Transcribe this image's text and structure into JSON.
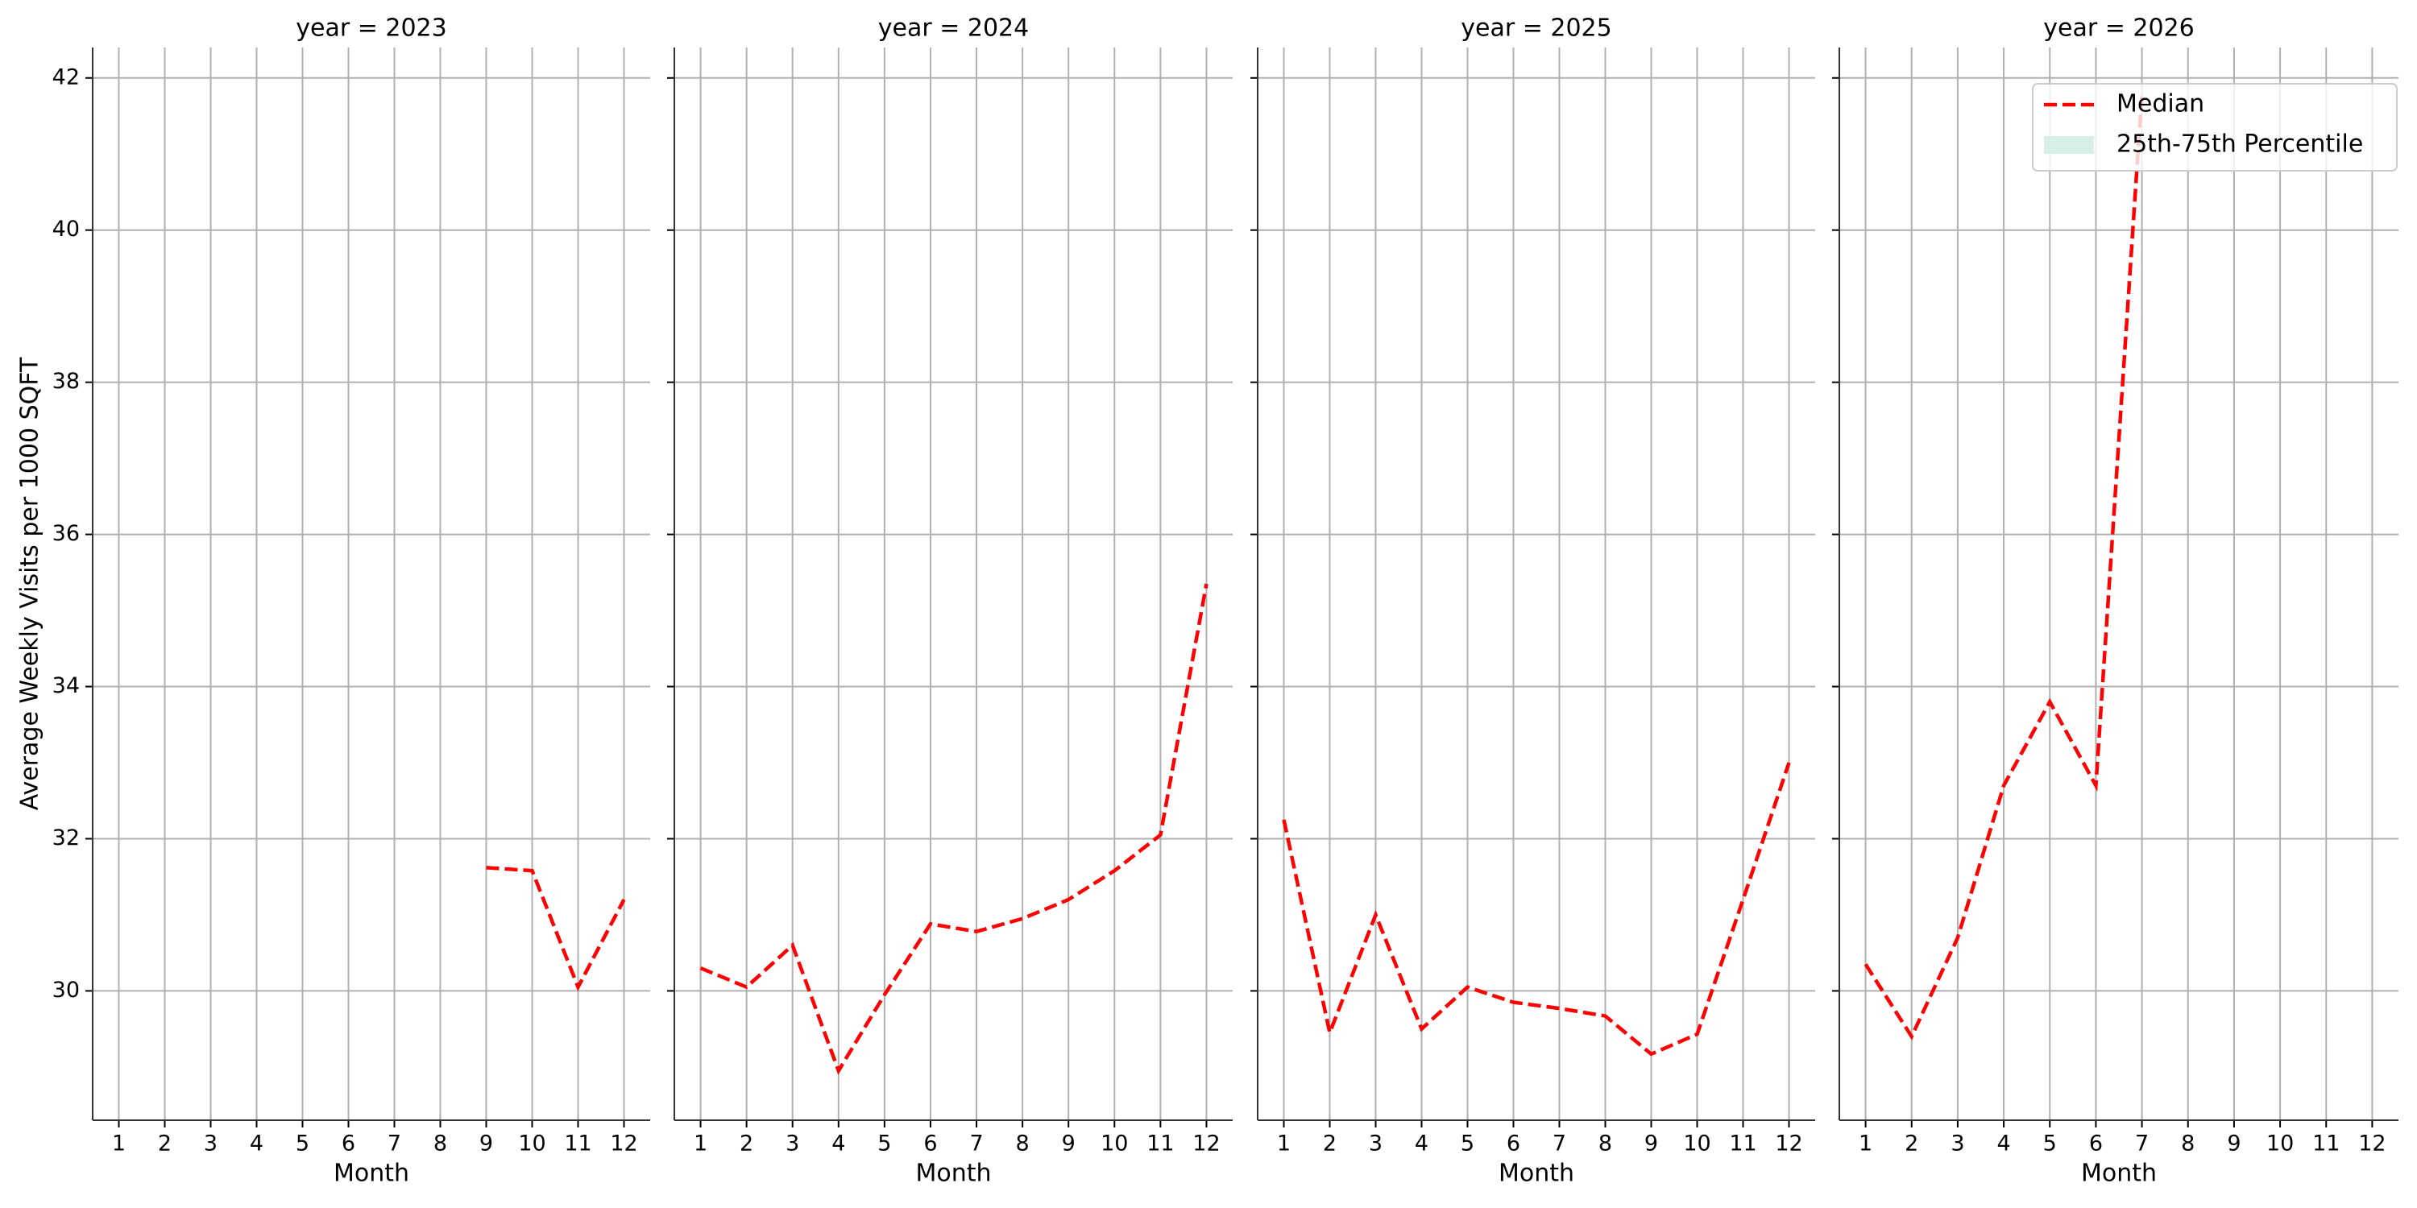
{
  "chart_data": [
    {
      "type": "line",
      "title": "year = 2023",
      "xlabel": "Month",
      "ylabel": "Average Weekly Visits per 1000 SQFT",
      "x": [
        1,
        2,
        3,
        4,
        5,
        6,
        7,
        8,
        9,
        10,
        11,
        12
      ],
      "series": [
        {
          "name": "Median",
          "color": "#ff0000",
          "style": "dashed",
          "values": [
            null,
            null,
            null,
            null,
            null,
            null,
            null,
            null,
            31.62,
            31.58,
            30.05,
            31.2
          ]
        }
      ],
      "xlim": [
        0.43,
        12.57
      ],
      "ylim": [
        28.3,
        42.4
      ],
      "xticks": [
        1,
        2,
        3,
        4,
        5,
        6,
        7,
        8,
        9,
        10,
        11,
        12
      ],
      "yticks": [
        30,
        32,
        34,
        36,
        38,
        40,
        42
      ],
      "ytick_labels": true,
      "grid": true
    },
    {
      "type": "line",
      "title": "year = 2024",
      "xlabel": "Month",
      "x": [
        1,
        2,
        3,
        4,
        5,
        6,
        7,
        8,
        9,
        10,
        11,
        12
      ],
      "series": [
        {
          "name": "Median",
          "color": "#ff0000",
          "style": "dashed",
          "values": [
            30.3,
            30.05,
            30.6,
            28.95,
            29.95,
            30.88,
            30.78,
            30.95,
            31.2,
            31.58,
            32.05,
            35.35
          ]
        }
      ],
      "xlim": [
        0.43,
        12.57
      ],
      "ylim": [
        28.3,
        42.4
      ],
      "xticks": [
        1,
        2,
        3,
        4,
        5,
        6,
        7,
        8,
        9,
        10,
        11,
        12
      ],
      "yticks": [
        30,
        32,
        34,
        36,
        38,
        40,
        42
      ],
      "ytick_labels": false,
      "grid": true
    },
    {
      "type": "line",
      "title": "year = 2025",
      "xlabel": "Month",
      "x": [
        1,
        2,
        3,
        4,
        5,
        6,
        7,
        8,
        9,
        10,
        11,
        12
      ],
      "series": [
        {
          "name": "Median",
          "color": "#ff0000",
          "style": "dashed",
          "values": [
            32.25,
            29.45,
            31.0,
            29.5,
            30.05,
            29.85,
            29.77,
            29.67,
            29.17,
            29.43,
            31.2,
            33.0
          ]
        }
      ],
      "xlim": [
        0.43,
        12.57
      ],
      "ylim": [
        28.3,
        42.4
      ],
      "xticks": [
        1,
        2,
        3,
        4,
        5,
        6,
        7,
        8,
        9,
        10,
        11,
        12
      ],
      "yticks": [
        30,
        32,
        34,
        36,
        38,
        40,
        42
      ],
      "ytick_labels": false,
      "grid": true
    },
    {
      "type": "line",
      "title": "year = 2026",
      "xlabel": "Month",
      "x": [
        1,
        2,
        3,
        4,
        5,
        6,
        7,
        8,
        9,
        10,
        11,
        12
      ],
      "series": [
        {
          "name": "Median",
          "color": "#ff0000",
          "style": "dashed",
          "values": [
            30.35,
            29.4,
            30.7,
            32.7,
            33.8,
            32.7,
            41.8,
            null,
            null,
            null,
            null,
            null
          ]
        },
        {
          "name": "25th-75th Percentile",
          "color": "#d8efe6",
          "style": "band",
          "values": [
            null,
            null,
            null,
            null,
            null,
            null,
            null,
            null,
            null,
            null,
            null,
            null
          ]
        }
      ],
      "xlim": [
        0.43,
        12.57
      ],
      "ylim": [
        28.3,
        42.4
      ],
      "xticks": [
        1,
        2,
        3,
        4,
        5,
        6,
        7,
        8,
        9,
        10,
        11,
        12
      ],
      "yticks": [
        30,
        32,
        34,
        36,
        38,
        40,
        42
      ],
      "ytick_labels": false,
      "grid": true,
      "legend": "upper right"
    }
  ]
}
